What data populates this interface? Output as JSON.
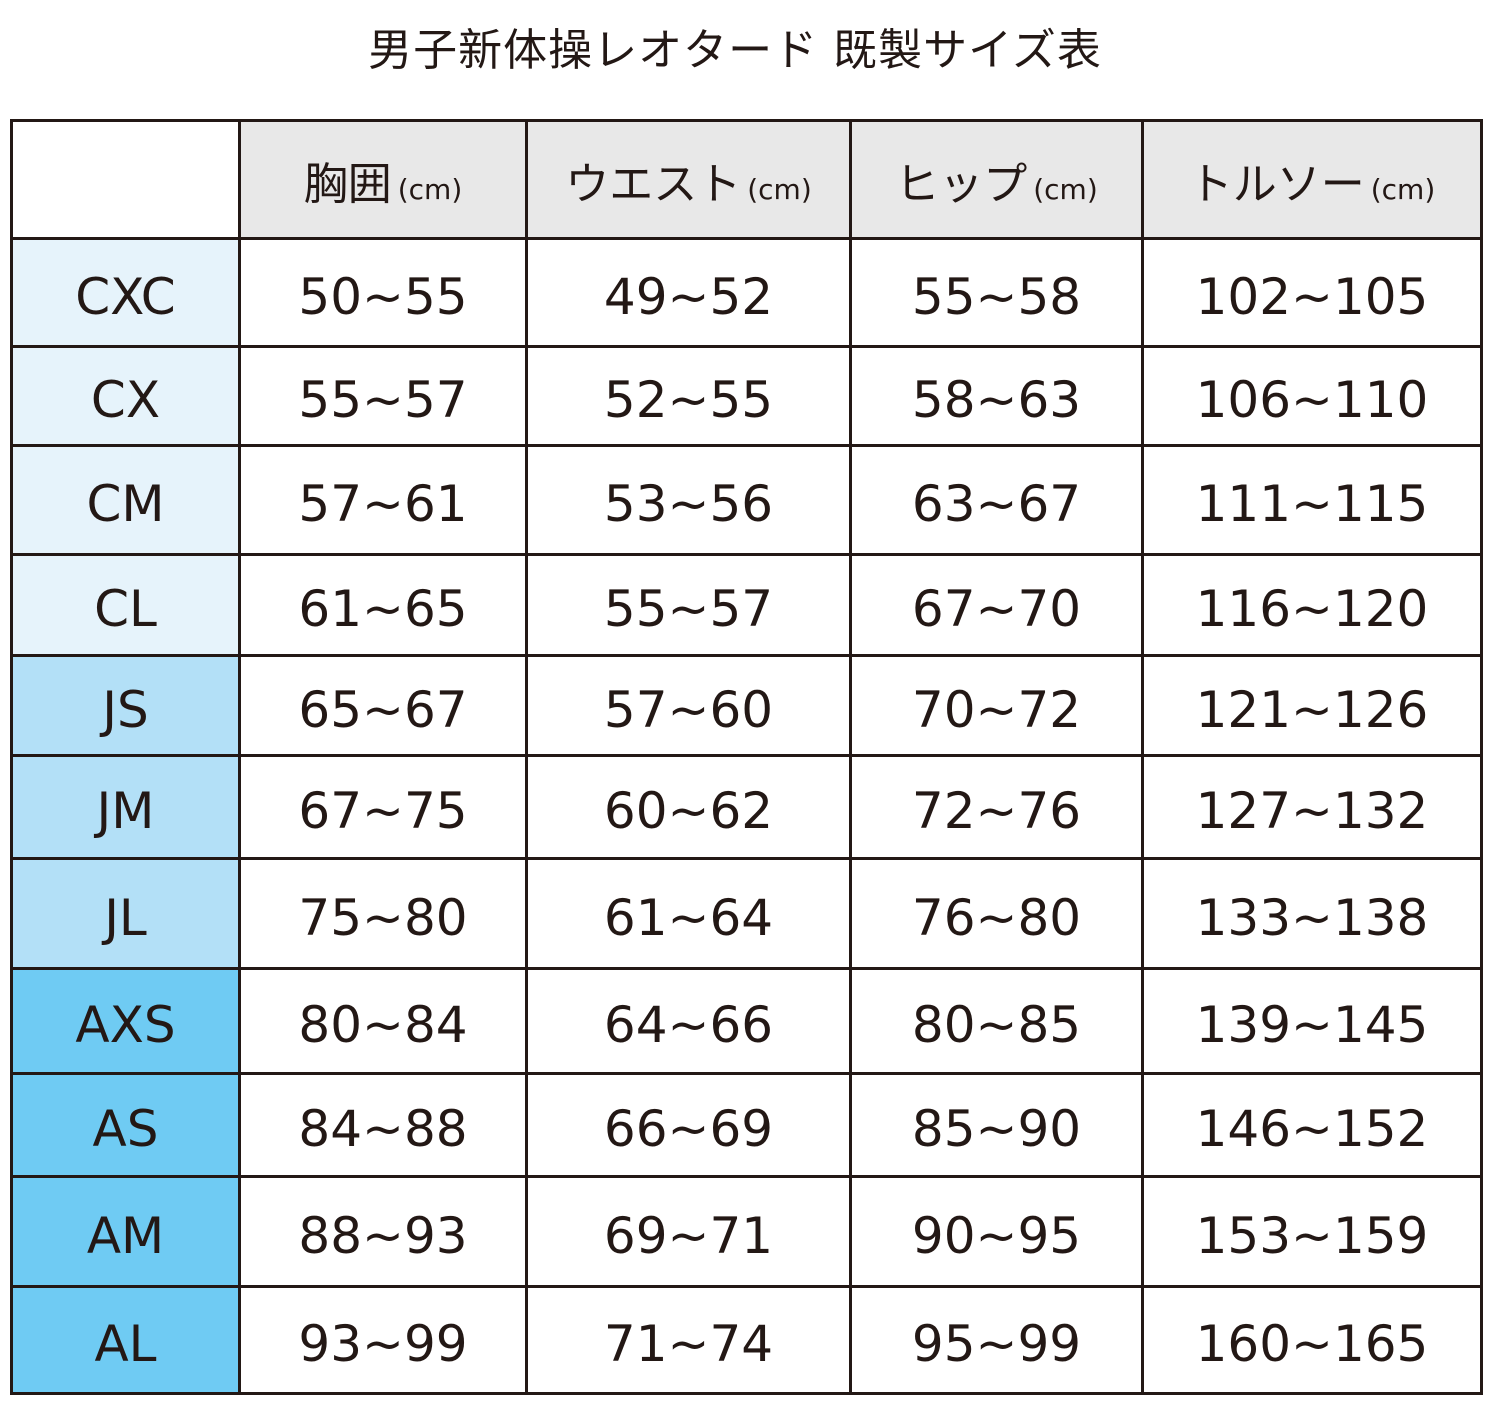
{
  "title": "男子新体操レオタード 既製サイズ表",
  "colors": {
    "child": "#e6f3fb",
    "junior": "#b3e0f7",
    "adult": "#6fcbf3",
    "header": "#e8e8e8"
  },
  "columns": [
    {
      "label": "胸囲",
      "unit": "(cm)"
    },
    {
      "label": "ウエスト",
      "unit": "(cm)"
    },
    {
      "label": "ヒップ",
      "unit": "(cm)"
    },
    {
      "label": "トルソー",
      "unit": "(cm)"
    }
  ],
  "rows": [
    {
      "size": "CXC",
      "group": "c",
      "values": [
        "50~55",
        "49~52",
        "55~58",
        "102~105"
      ]
    },
    {
      "size": "CX",
      "group": "c",
      "values": [
        "55~57",
        "52~55",
        "58~63",
        "106~110"
      ]
    },
    {
      "size": "CM",
      "group": "c",
      "values": [
        "57~61",
        "53~56",
        "63~67",
        "111~115"
      ]
    },
    {
      "size": "CL",
      "group": "c",
      "values": [
        "61~65",
        "55~57",
        "67~70",
        "116~120"
      ]
    },
    {
      "size": "JS",
      "group": "j",
      "values": [
        "65~67",
        "57~60",
        "70~72",
        "121~126"
      ]
    },
    {
      "size": "JM",
      "group": "j",
      "values": [
        "67~75",
        "60~62",
        "72~76",
        "127~132"
      ]
    },
    {
      "size": "JL",
      "group": "j",
      "values": [
        "75~80",
        "61~64",
        "76~80",
        "133~138"
      ]
    },
    {
      "size": "AXS",
      "group": "a",
      "values": [
        "80~84",
        "64~66",
        "80~85",
        "139~145"
      ]
    },
    {
      "size": "AS",
      "group": "a",
      "values": [
        "84~88",
        "66~69",
        "85~90",
        "146~152"
      ]
    },
    {
      "size": "AM",
      "group": "a",
      "values": [
        "88~93",
        "69~71",
        "90~95",
        "153~159"
      ]
    },
    {
      "size": "AL",
      "group": "a",
      "values": [
        "93~99",
        "71~74",
        "95~99",
        "160~165"
      ]
    }
  ]
}
